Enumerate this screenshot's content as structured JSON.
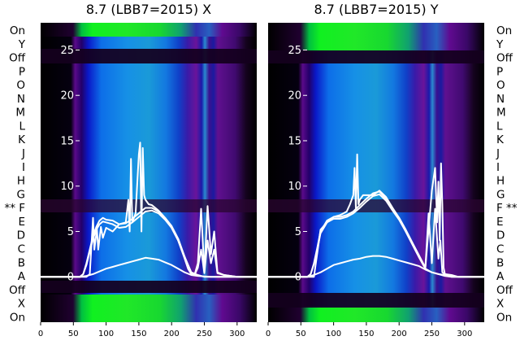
{
  "colors": {
    "trace": "#ffffff",
    "background": "#ffffff"
  },
  "left_labels": [
    "On",
    "Y",
    "Off",
    "P",
    "O",
    "N",
    "M",
    "L",
    "K",
    "J",
    "I",
    "H",
    "G",
    "** F",
    "E",
    "D",
    "C",
    "B",
    "A",
    "Off",
    "X",
    "On"
  ],
  "right_labels": [
    "On",
    "Y",
    "Off",
    "P",
    "O",
    "N",
    "M",
    "L",
    "K",
    "J",
    "I",
    "H",
    "G",
    "F **",
    "E",
    "D",
    "C",
    "B",
    "A",
    "Off",
    "X",
    "On"
  ],
  "chart_data": [
    {
      "type": "heatmap",
      "title": "8.7 (LBB7=2015) X",
      "xlim": [
        0,
        330
      ],
      "ylim": [
        -5,
        28
      ],
      "x_ticks": [
        "0",
        "50",
        "100",
        "150",
        "200",
        "250",
        "300"
      ],
      "y_ticks": [
        "0",
        "5",
        "10",
        "15",
        "20",
        "25"
      ],
      "heatmap_colormap": [
        "black",
        "purple",
        "blue",
        "cyan",
        "green"
      ],
      "series": [
        {
          "x": [
            0,
            60,
            65,
            70,
            75,
            80,
            85,
            90,
            95,
            100,
            110,
            120,
            130,
            140,
            150,
            160,
            170,
            180,
            190,
            200,
            210,
            220,
            225,
            230,
            235,
            240,
            245,
            250,
            255,
            260,
            265,
            270,
            280,
            290,
            300,
            310,
            320,
            330
          ],
          "y": [
            0,
            0,
            0.3,
            1.5,
            3,
            4.5,
            5.5,
            6.2,
            6.5,
            6.3,
            6.2,
            5.8,
            5.9,
            6.4,
            7,
            7.6,
            7.6,
            7.2,
            6.5,
            5.6,
            4.2,
            2.2,
            1,
            0.4,
            0.2,
            1.5,
            7.5,
            0.5,
            7.8,
            2.5,
            5,
            0.5,
            0.2,
            0.1,
            0,
            0,
            0,
            0
          ]
        },
        {
          "x": [
            0,
            60,
            65,
            70,
            75,
            80,
            85,
            90,
            95,
            100,
            110,
            120,
            130,
            140,
            150,
            160,
            170,
            180,
            190,
            200,
            210,
            220,
            225,
            230,
            235,
            240,
            245,
            250,
            255,
            260,
            265,
            270,
            280,
            290,
            300,
            310,
            320,
            330
          ],
          "y": [
            0,
            0,
            0.3,
            1.3,
            2.8,
            4.2,
            5.2,
            5.8,
            6.1,
            6,
            5.8,
            5.4,
            5.5,
            6,
            6.6,
            7.2,
            7.3,
            7,
            6.3,
            5.4,
            4,
            2,
            0.9,
            0.3,
            0.2,
            1,
            3,
            0.4,
            4,
            1.5,
            3,
            0.4,
            0.2,
            0.1,
            0,
            0,
            0,
            0
          ]
        },
        {
          "x": [
            0,
            60,
            70,
            80,
            90,
            100,
            110,
            120,
            130,
            140,
            150,
            160,
            170,
            180,
            190,
            200,
            210,
            220,
            230,
            240,
            250,
            260,
            270,
            280,
            290,
            300,
            310,
            320,
            330
          ],
          "y": [
            0,
            0,
            0.1,
            0.3,
            0.6,
            0.9,
            1.1,
            1.3,
            1.5,
            1.7,
            1.9,
            2.1,
            2,
            1.9,
            1.6,
            1.3,
            0.9,
            0.5,
            0.2,
            0.1,
            0.05,
            0,
            0,
            0,
            0,
            0,
            0,
            0,
            0
          ]
        },
        {
          "x": [
            0,
            70,
            75,
            80,
            82,
            86,
            88,
            92,
            95,
            100,
            110,
            120,
            130,
            134,
            136,
            138,
            140,
            145,
            150,
            152,
            154,
            156,
            158,
            160,
            165,
            170,
            180,
            190,
            200,
            210,
            220,
            230,
            240,
            250,
            330
          ],
          "y": [
            0,
            0,
            0.3,
            6.5,
            3,
            5.3,
            3,
            5.5,
            4.3,
            5.4,
            5,
            5.8,
            6,
            8.5,
            5,
            13,
            6,
            7,
            13.5,
            14.8,
            5,
            14.2,
            9,
            8.5,
            8,
            7.9,
            7.3,
            6.5,
            5.4,
            4,
            2.2,
            0.5,
            0.2,
            0,
            0
          ]
        }
      ]
    },
    {
      "type": "heatmap",
      "title": "8.7 (LBB7=2015) Y",
      "xlim": [
        0,
        330
      ],
      "ylim": [
        -5,
        28
      ],
      "x_ticks": [
        "0",
        "50",
        "100",
        "150",
        "200",
        "250",
        "300"
      ],
      "y_ticks": [
        "0",
        "5",
        "10",
        "15",
        "20",
        "25"
      ],
      "heatmap_colormap": [
        "black",
        "purple",
        "blue",
        "cyan",
        "green"
      ],
      "series": [
        {
          "x": [
            0,
            60,
            65,
            70,
            75,
            80,
            90,
            100,
            110,
            120,
            130,
            140,
            150,
            160,
            170,
            180,
            190,
            200,
            210,
            220,
            230,
            240,
            245,
            250,
            255,
            260,
            263,
            266,
            270,
            280,
            290,
            300,
            310,
            320,
            330
          ],
          "y": [
            0,
            0,
            0.3,
            1.5,
            3.2,
            5,
            6.2,
            6.6,
            6.6,
            6.8,
            7.2,
            7.9,
            8.6,
            9.2,
            9.4,
            8.6,
            7.5,
            6.5,
            5.2,
            3.8,
            2.4,
            1,
            7,
            1.5,
            7.5,
            2,
            4,
            0.5,
            0.3,
            0.2,
            0,
            0,
            0,
            0,
            0
          ]
        },
        {
          "x": [
            0,
            60,
            65,
            70,
            75,
            80,
            90,
            100,
            110,
            120,
            130,
            140,
            150,
            160,
            170,
            180,
            190,
            200,
            210,
            220,
            230,
            240,
            250,
            260,
            270,
            280,
            290,
            300,
            310,
            320,
            330
          ],
          "y": [
            0,
            0,
            0.3,
            1.4,
            3,
            4.8,
            6,
            6.4,
            6.4,
            6.6,
            7,
            7.6,
            8.3,
            8.9,
            9.1,
            8.4,
            7.3,
            6.3,
            5,
            3.6,
            2.2,
            0.9,
            0.5,
            0.3,
            0.2,
            0.1,
            0,
            0,
            0,
            0,
            0
          ]
        },
        {
          "x": [
            0,
            60,
            70,
            80,
            90,
            100,
            110,
            120,
            130,
            140,
            150,
            160,
            170,
            180,
            190,
            200,
            210,
            220,
            230,
            240,
            250,
            260,
            270,
            280,
            290,
            300,
            310,
            320,
            330
          ],
          "y": [
            0,
            0,
            0.2,
            0.5,
            0.9,
            1.3,
            1.5,
            1.7,
            1.9,
            2,
            2.2,
            2.3,
            2.3,
            2.2,
            2,
            1.8,
            1.6,
            1.4,
            1.2,
            0.8,
            0.5,
            0.3,
            0.1,
            0,
            0,
            0,
            0,
            0,
            0
          ]
        },
        {
          "x": [
            0,
            70,
            80,
            90,
            100,
            110,
            120,
            125,
            130,
            132,
            134,
            136,
            138,
            140,
            145,
            150,
            160,
            170,
            180,
            190,
            200,
            210,
            220,
            230,
            240,
            250,
            255,
            258,
            260,
            262,
            264,
            266,
            268,
            270,
            280,
            330
          ],
          "y": [
            0,
            0,
            5.2,
            6,
            6.6,
            6.8,
            7.2,
            8,
            9,
            12,
            7.5,
            13.5,
            8,
            8.5,
            9,
            9,
            9,
            9.5,
            8.8,
            7.6,
            6.5,
            5.2,
            3.8,
            2.4,
            1,
            9.5,
            12,
            6,
            10.5,
            4,
            12.5,
            8,
            1,
            0.3,
            0,
            0
          ]
        }
      ]
    }
  ]
}
